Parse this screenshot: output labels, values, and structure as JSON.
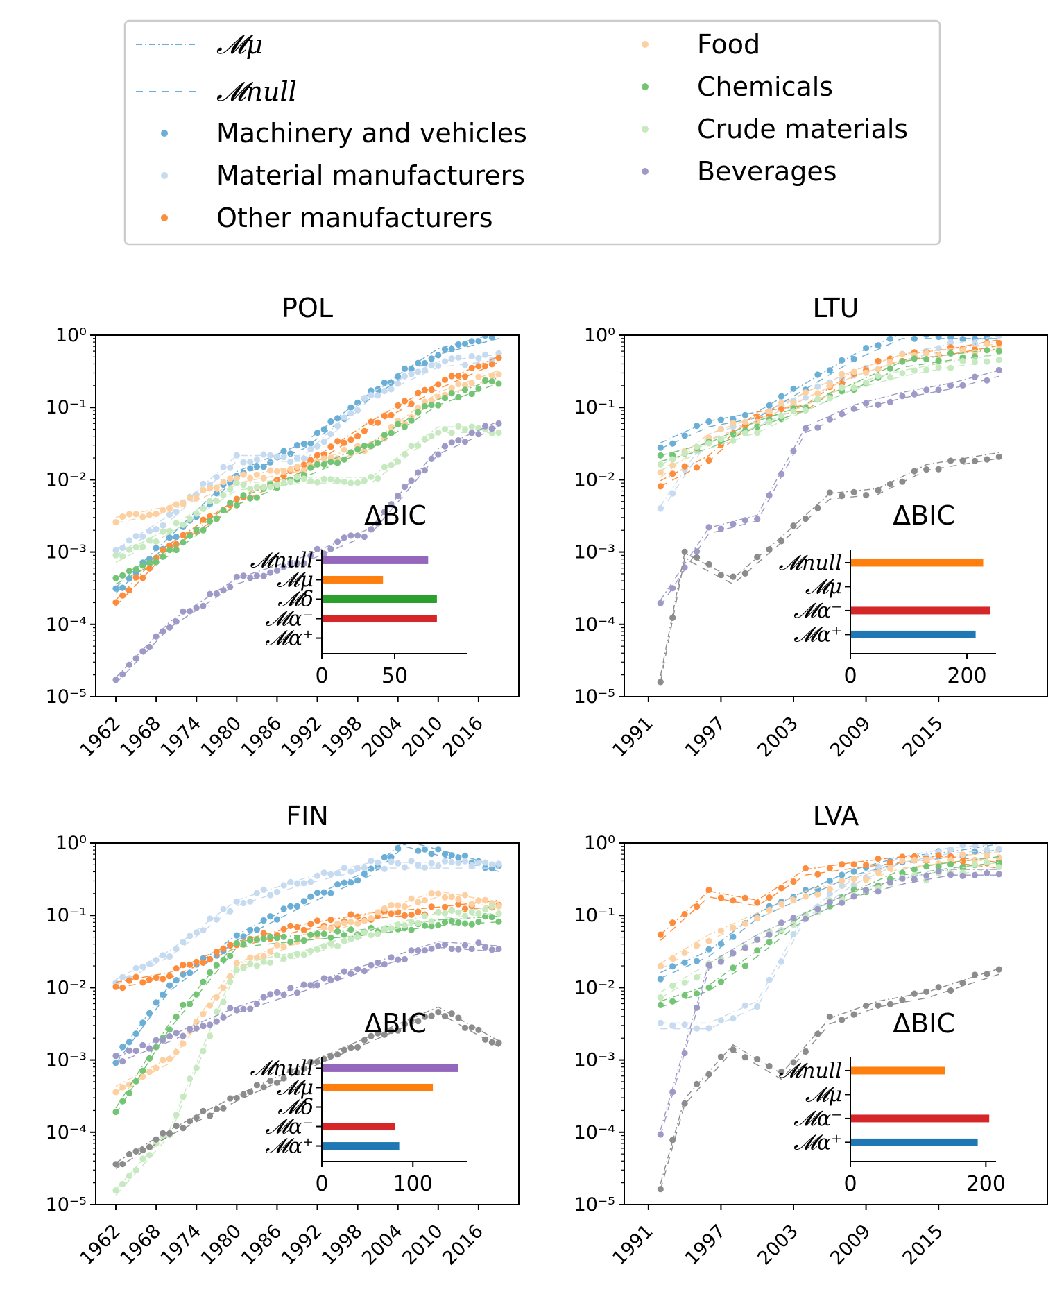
{
  "legend": {
    "models": [
      {
        "label": "𝓜μ",
        "dash": "dashdot",
        "color": "#6baed6"
      },
      {
        "label": "𝓜null",
        "dash": "dashed",
        "color": "#6baed6"
      }
    ],
    "categories": [
      {
        "label": "Machinery and vehicles",
        "color": "#6baed6"
      },
      {
        "label": "Material manufacturers",
        "color": "#c6dbef"
      },
      {
        "label": "Other manufacturers",
        "color": "#fd8d3c"
      },
      {
        "label": "Food",
        "color": "#fdd0a2"
      },
      {
        "label": "Chemicals",
        "color": "#74c476"
      },
      {
        "label": "Crude materials",
        "color": "#c7e9c0"
      },
      {
        "label": "Beverages",
        "color": "#9e9ac8"
      }
    ]
  },
  "chart_data": [
    {
      "type": "scatter",
      "title": "POL",
      "yscale": "log",
      "ylim": [
        1e-05,
        1
      ],
      "yticks": [
        "10⁰",
        "10⁻¹",
        "10⁻²",
        "10⁻³",
        "10⁻⁴",
        "10⁻⁵"
      ],
      "xlim": [
        1959,
        2022
      ],
      "xticks": [
        1962,
        1968,
        1974,
        1980,
        1986,
        1992,
        1998,
        2004,
        2010,
        2016
      ],
      "series": [
        {
          "name": "Machinery and vehicles",
          "x": [
            1962,
            1970,
            1980,
            1990,
            2000,
            2010,
            2019
          ],
          "y": [
            0.0003,
            0.0015,
            0.012,
            0.03,
            0.15,
            0.6,
            1.0
          ]
        },
        {
          "name": "Material manufacturers",
          "x": [
            1962,
            1970,
            1980,
            1990,
            2000,
            2010,
            2019
          ],
          "y": [
            0.001,
            0.003,
            0.02,
            0.02,
            0.15,
            0.4,
            0.5
          ]
        },
        {
          "name": "Other manufacturers",
          "x": [
            1962,
            1970,
            1980,
            1990,
            2000,
            2010,
            2019
          ],
          "y": [
            0.0002,
            0.0012,
            0.005,
            0.015,
            0.06,
            0.2,
            0.47
          ]
        },
        {
          "name": "Food",
          "x": [
            1962,
            1970,
            1980,
            1990,
            2000,
            2010,
            2019
          ],
          "y": [
            0.0028,
            0.004,
            0.01,
            0.015,
            0.03,
            0.15,
            0.3
          ]
        },
        {
          "name": "Chemicals",
          "x": [
            1962,
            1970,
            1980,
            1990,
            2000,
            2010,
            2019
          ],
          "y": [
            0.0004,
            0.001,
            0.005,
            0.012,
            0.03,
            0.12,
            0.24
          ]
        },
        {
          "name": "Crude materials",
          "x": [
            1962,
            1970,
            1980,
            1990,
            2000,
            2010,
            2019
          ],
          "y": [
            0.0008,
            0.002,
            0.008,
            0.01,
            0.01,
            0.05,
            0.05
          ]
        },
        {
          "name": "Beverages",
          "x": [
            1962,
            1970,
            1980,
            1990,
            2000,
            2010,
            2019
          ],
          "y": [
            1.7e-05,
            0.0001,
            0.0004,
            0.0008,
            0.002,
            0.025,
            0.06
          ]
        }
      ],
      "bic": {
        "title": "ΔBIC",
        "xlim": [
          0,
          100
        ],
        "xticks": [
          0,
          50
        ],
        "models": [
          {
            "label": "𝓜null",
            "value": 73,
            "color": "#9467bd"
          },
          {
            "label": "𝓜μ",
            "value": 42,
            "color": "#ff7f0e"
          },
          {
            "label": "𝓜δ",
            "value": 79,
            "color": "#2ca02c"
          },
          {
            "label": "𝓜α⁻",
            "value": 79,
            "color": "#d62728"
          },
          {
            "label": "𝓜α⁺",
            "value": null,
            "color": "#1f77b4"
          }
        ]
      }
    },
    {
      "type": "scatter",
      "title": "LTU",
      "yscale": "log",
      "ylim": [
        1e-05,
        1
      ],
      "yticks": [
        "10⁰",
        "10⁻¹",
        "10⁻²",
        "10⁻³",
        "10⁻⁴",
        "10⁻⁵"
      ],
      "xlim": [
        1989,
        2024
      ],
      "xticks": [
        1991,
        1997,
        2003,
        2009,
        2015
      ],
      "series": [
        {
          "name": "Machinery and vehicles",
          "x": [
            1992,
            1996,
            2000,
            2004,
            2008,
            2012,
            2016,
            2020
          ],
          "y": [
            0.03,
            0.06,
            0.08,
            0.2,
            0.5,
            1.0,
            1.0,
            1.0
          ]
        },
        {
          "name": "Material manufacturers",
          "x": [
            1992,
            1996,
            2000,
            2004,
            2008,
            2012,
            2016,
            2020
          ],
          "y": [
            0.004,
            0.04,
            0.06,
            0.15,
            0.3,
            0.5,
            0.7,
            0.9
          ]
        },
        {
          "name": "Other manufacturers",
          "x": [
            1992,
            1996,
            2000,
            2004,
            2008,
            2012,
            2016,
            2020
          ],
          "y": [
            0.009,
            0.02,
            0.08,
            0.1,
            0.3,
            0.5,
            0.6,
            0.8
          ]
        },
        {
          "name": "Food",
          "x": [
            1992,
            1996,
            2000,
            2004,
            2008,
            2012,
            2016,
            2020
          ],
          "y": [
            0.012,
            0.04,
            0.07,
            0.15,
            0.3,
            0.5,
            0.6,
            0.7
          ]
        },
        {
          "name": "Chemicals",
          "x": [
            1992,
            1996,
            2000,
            2004,
            2008,
            2012,
            2016,
            2020
          ],
          "y": [
            0.02,
            0.03,
            0.06,
            0.1,
            0.2,
            0.4,
            0.5,
            0.6
          ]
        },
        {
          "name": "Crude materials",
          "x": [
            1992,
            1996,
            2000,
            2004,
            2008,
            2012,
            2016,
            2020
          ],
          "y": [
            0.015,
            0.03,
            0.05,
            0.1,
            0.2,
            0.3,
            0.4,
            0.5
          ]
        },
        {
          "name": "Beverages",
          "x": [
            1992,
            1996,
            2000,
            2004,
            2008,
            2012,
            2016,
            2020
          ],
          "y": [
            0.0002,
            0.002,
            0.003,
            0.05,
            0.1,
            0.15,
            0.2,
            0.3
          ]
        },
        {
          "name": "",
          "x": [
            1992,
            1994,
            1998,
            2002,
            2006,
            2010,
            2014,
            2020
          ],
          "y": [
            1.8e-05,
            0.0009,
            0.0004,
            0.0015,
            0.006,
            0.007,
            0.015,
            0.022
          ]
        }
      ],
      "bic": {
        "title": "ΔBIC",
        "xlim": [
          0,
          250
        ],
        "xticks": [
          0,
          200
        ],
        "models": [
          {
            "label": "𝓜null",
            "value": 228,
            "color": "#ff7f0e"
          },
          {
            "label": "𝓜μ",
            "value": null,
            "color": "#2ca02c"
          },
          {
            "label": "𝓜α⁻",
            "value": 240,
            "color": "#d62728"
          },
          {
            "label": "𝓜α⁺",
            "value": 215,
            "color": "#1f77b4"
          }
        ]
      }
    },
    {
      "type": "scatter",
      "title": "FIN",
      "yscale": "log",
      "ylim": [
        1e-05,
        1
      ],
      "yticks": [
        "10⁰",
        "10⁻¹",
        "10⁻²",
        "10⁻³",
        "10⁻⁴",
        "10⁻⁵"
      ],
      "xlim": [
        1959,
        2022
      ],
      "xticks": [
        1962,
        1968,
        1974,
        1980,
        1986,
        1992,
        1998,
        2004,
        2010,
        2016
      ],
      "series": [
        {
          "name": "Machinery and vehicles",
          "x": [
            1962,
            1970,
            1980,
            1990,
            2000,
            2005,
            2019
          ],
          "y": [
            0.001,
            0.01,
            0.05,
            0.15,
            0.4,
            1.0,
            0.45
          ]
        },
        {
          "name": "Material manufacturers",
          "x": [
            1962,
            1970,
            1980,
            1990,
            2000,
            2010,
            2019
          ],
          "y": [
            0.012,
            0.03,
            0.15,
            0.3,
            0.5,
            0.5,
            0.5
          ]
        },
        {
          "name": "Other manufacturers",
          "x": [
            1962,
            1970,
            1980,
            1990,
            2000,
            2010,
            2019
          ],
          "y": [
            0.011,
            0.015,
            0.04,
            0.07,
            0.1,
            0.12,
            0.15
          ]
        },
        {
          "name": "Food",
          "x": [
            1962,
            1970,
            1980,
            1990,
            2000,
            2010,
            2019
          ],
          "y": [
            0.0004,
            0.001,
            0.02,
            0.05,
            0.1,
            0.2,
            0.14
          ]
        },
        {
          "name": "Chemicals",
          "x": [
            1962,
            1970,
            1980,
            1990,
            2000,
            2010,
            2019
          ],
          "y": [
            0.0002,
            0.003,
            0.04,
            0.05,
            0.06,
            0.08,
            0.09
          ]
        },
        {
          "name": "Crude materials",
          "x": [
            1962,
            1970,
            1980,
            1990,
            2000,
            2010,
            2019
          ],
          "y": [
            1.5e-05,
            0.0001,
            0.02,
            0.03,
            0.06,
            0.1,
            0.12
          ]
        },
        {
          "name": "Beverages",
          "x": [
            1962,
            1970,
            1980,
            1990,
            2000,
            2010,
            2019
          ],
          "y": [
            0.001,
            0.002,
            0.005,
            0.01,
            0.02,
            0.04,
            0.035
          ]
        },
        {
          "name": "",
          "x": [
            1962,
            1970,
            1980,
            1990,
            2000,
            2010,
            2019
          ],
          "y": [
            3.5e-05,
            0.0001,
            0.0003,
            0.0008,
            0.002,
            0.005,
            0.0017
          ]
        }
      ],
      "bic": {
        "title": "ΔBIC",
        "xlim": [
          0,
          160
        ],
        "xticks": [
          0,
          100
        ],
        "models": [
          {
            "label": "𝓜null",
            "value": 150,
            "color": "#9467bd"
          },
          {
            "label": "𝓜μ",
            "value": 122,
            "color": "#ff7f0e"
          },
          {
            "label": "𝓜δ",
            "value": null,
            "color": "#2ca02c"
          },
          {
            "label": "𝓜α⁻",
            "value": 80,
            "color": "#d62728"
          },
          {
            "label": "𝓜α⁺",
            "value": 85,
            "color": "#1f77b4"
          }
        ]
      }
    },
    {
      "type": "scatter",
      "title": "LVA",
      "yscale": "log",
      "ylim": [
        1e-05,
        1
      ],
      "yticks": [
        "10⁰",
        "10⁻¹",
        "10⁻²",
        "10⁻³",
        "10⁻⁴",
        "10⁻⁵"
      ],
      "xlim": [
        1989,
        2024
      ],
      "xticks": [
        1991,
        1997,
        2003,
        2009,
        2015
      ],
      "series": [
        {
          "name": "Machinery and vehicles",
          "x": [
            1992,
            1996,
            2000,
            2004,
            2008,
            2012,
            2016,
            2020
          ],
          "y": [
            0.015,
            0.03,
            0.1,
            0.2,
            0.4,
            0.6,
            0.7,
            0.9
          ]
        },
        {
          "name": "Material manufacturers",
          "x": [
            1992,
            1996,
            2000,
            2004,
            2008,
            2012,
            2016,
            2020
          ],
          "y": [
            0.003,
            0.003,
            0.006,
            0.1,
            0.3,
            0.6,
            0.8,
            0.9
          ]
        },
        {
          "name": "Other manufacturers",
          "x": [
            1992,
            1996,
            2000,
            2004,
            2008,
            2012,
            2016,
            2020
          ],
          "y": [
            0.05,
            0.2,
            0.15,
            0.4,
            0.5,
            0.6,
            0.6,
            0.5
          ]
        },
        {
          "name": "Food",
          "x": [
            1992,
            1996,
            2000,
            2004,
            2008,
            2012,
            2016,
            2020
          ],
          "y": [
            0.02,
            0.05,
            0.1,
            0.2,
            0.3,
            0.5,
            0.6,
            0.7
          ]
        },
        {
          "name": "Chemicals",
          "x": [
            1992,
            1996,
            2000,
            2004,
            2008,
            2012,
            2016,
            2020
          ],
          "y": [
            0.006,
            0.01,
            0.03,
            0.1,
            0.2,
            0.4,
            0.5,
            0.6
          ]
        },
        {
          "name": "Crude materials",
          "x": [
            1992,
            1996,
            2000,
            2004,
            2008,
            2012,
            2016,
            2020
          ],
          "y": [
            0.008,
            0.02,
            0.05,
            0.1,
            0.2,
            0.3,
            0.4,
            0.5
          ]
        },
        {
          "name": "Beverages",
          "x": [
            1992,
            1996,
            2000,
            2004,
            2008,
            2012,
            2016,
            2020
          ],
          "y": [
            0.0001,
            0.02,
            0.05,
            0.1,
            0.2,
            0.3,
            0.4,
            0.4
          ]
        },
        {
          "name": "",
          "x": [
            1992,
            1994,
            1998,
            2002,
            2006,
            2010,
            2014,
            2020
          ],
          "y": [
            1.8e-05,
            0.00027,
            0.0015,
            0.0006,
            0.0035,
            0.006,
            0.008,
            0.017
          ]
        }
      ],
      "bic": {
        "title": "ΔBIC",
        "xlim": [
          0,
          215
        ],
        "xticks": [
          0,
          200
        ],
        "models": [
          {
            "label": "𝓜null",
            "value": 140,
            "color": "#ff7f0e"
          },
          {
            "label": "𝓜μ",
            "value": null,
            "color": "#2ca02c"
          },
          {
            "label": "𝓜α⁻",
            "value": 205,
            "color": "#d62728"
          },
          {
            "label": "𝓜α⁺",
            "value": 188,
            "color": "#1f77b4"
          }
        ]
      }
    }
  ]
}
